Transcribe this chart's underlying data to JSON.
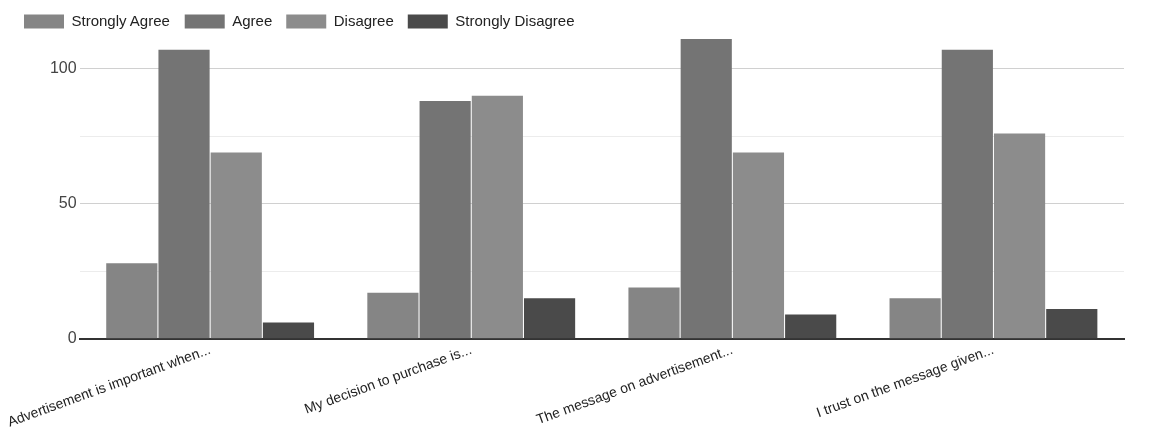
{
  "chart_data": {
    "type": "bar",
    "categories": [
      "Advertisement is important when...",
      "My decision to purchase is...",
      "The message on advertisement...",
      "I trust on the message given..."
    ],
    "series": [
      {
        "name": "Strongly Agree",
        "color": "#858585",
        "values": [
          28,
          17,
          19,
          15
        ]
      },
      {
        "name": "Agree",
        "color": "#747474",
        "values": [
          107,
          88,
          111,
          107
        ]
      },
      {
        "name": "Disagree",
        "color": "#8c8c8c",
        "values": [
          69,
          90,
          69,
          76
        ]
      },
      {
        "name": "Strongly Disagree",
        "color": "#4a4a4a",
        "values": [
          6,
          15,
          9,
          11
        ]
      }
    ],
    "ylim": [
      0,
      111
    ],
    "yticks": [
      0,
      {
        "value": 25,
        "label": null
      },
      50,
      {
        "value": 75,
        "label": null
      },
      100
    ],
    "grid": "y",
    "legend": "top left"
  }
}
